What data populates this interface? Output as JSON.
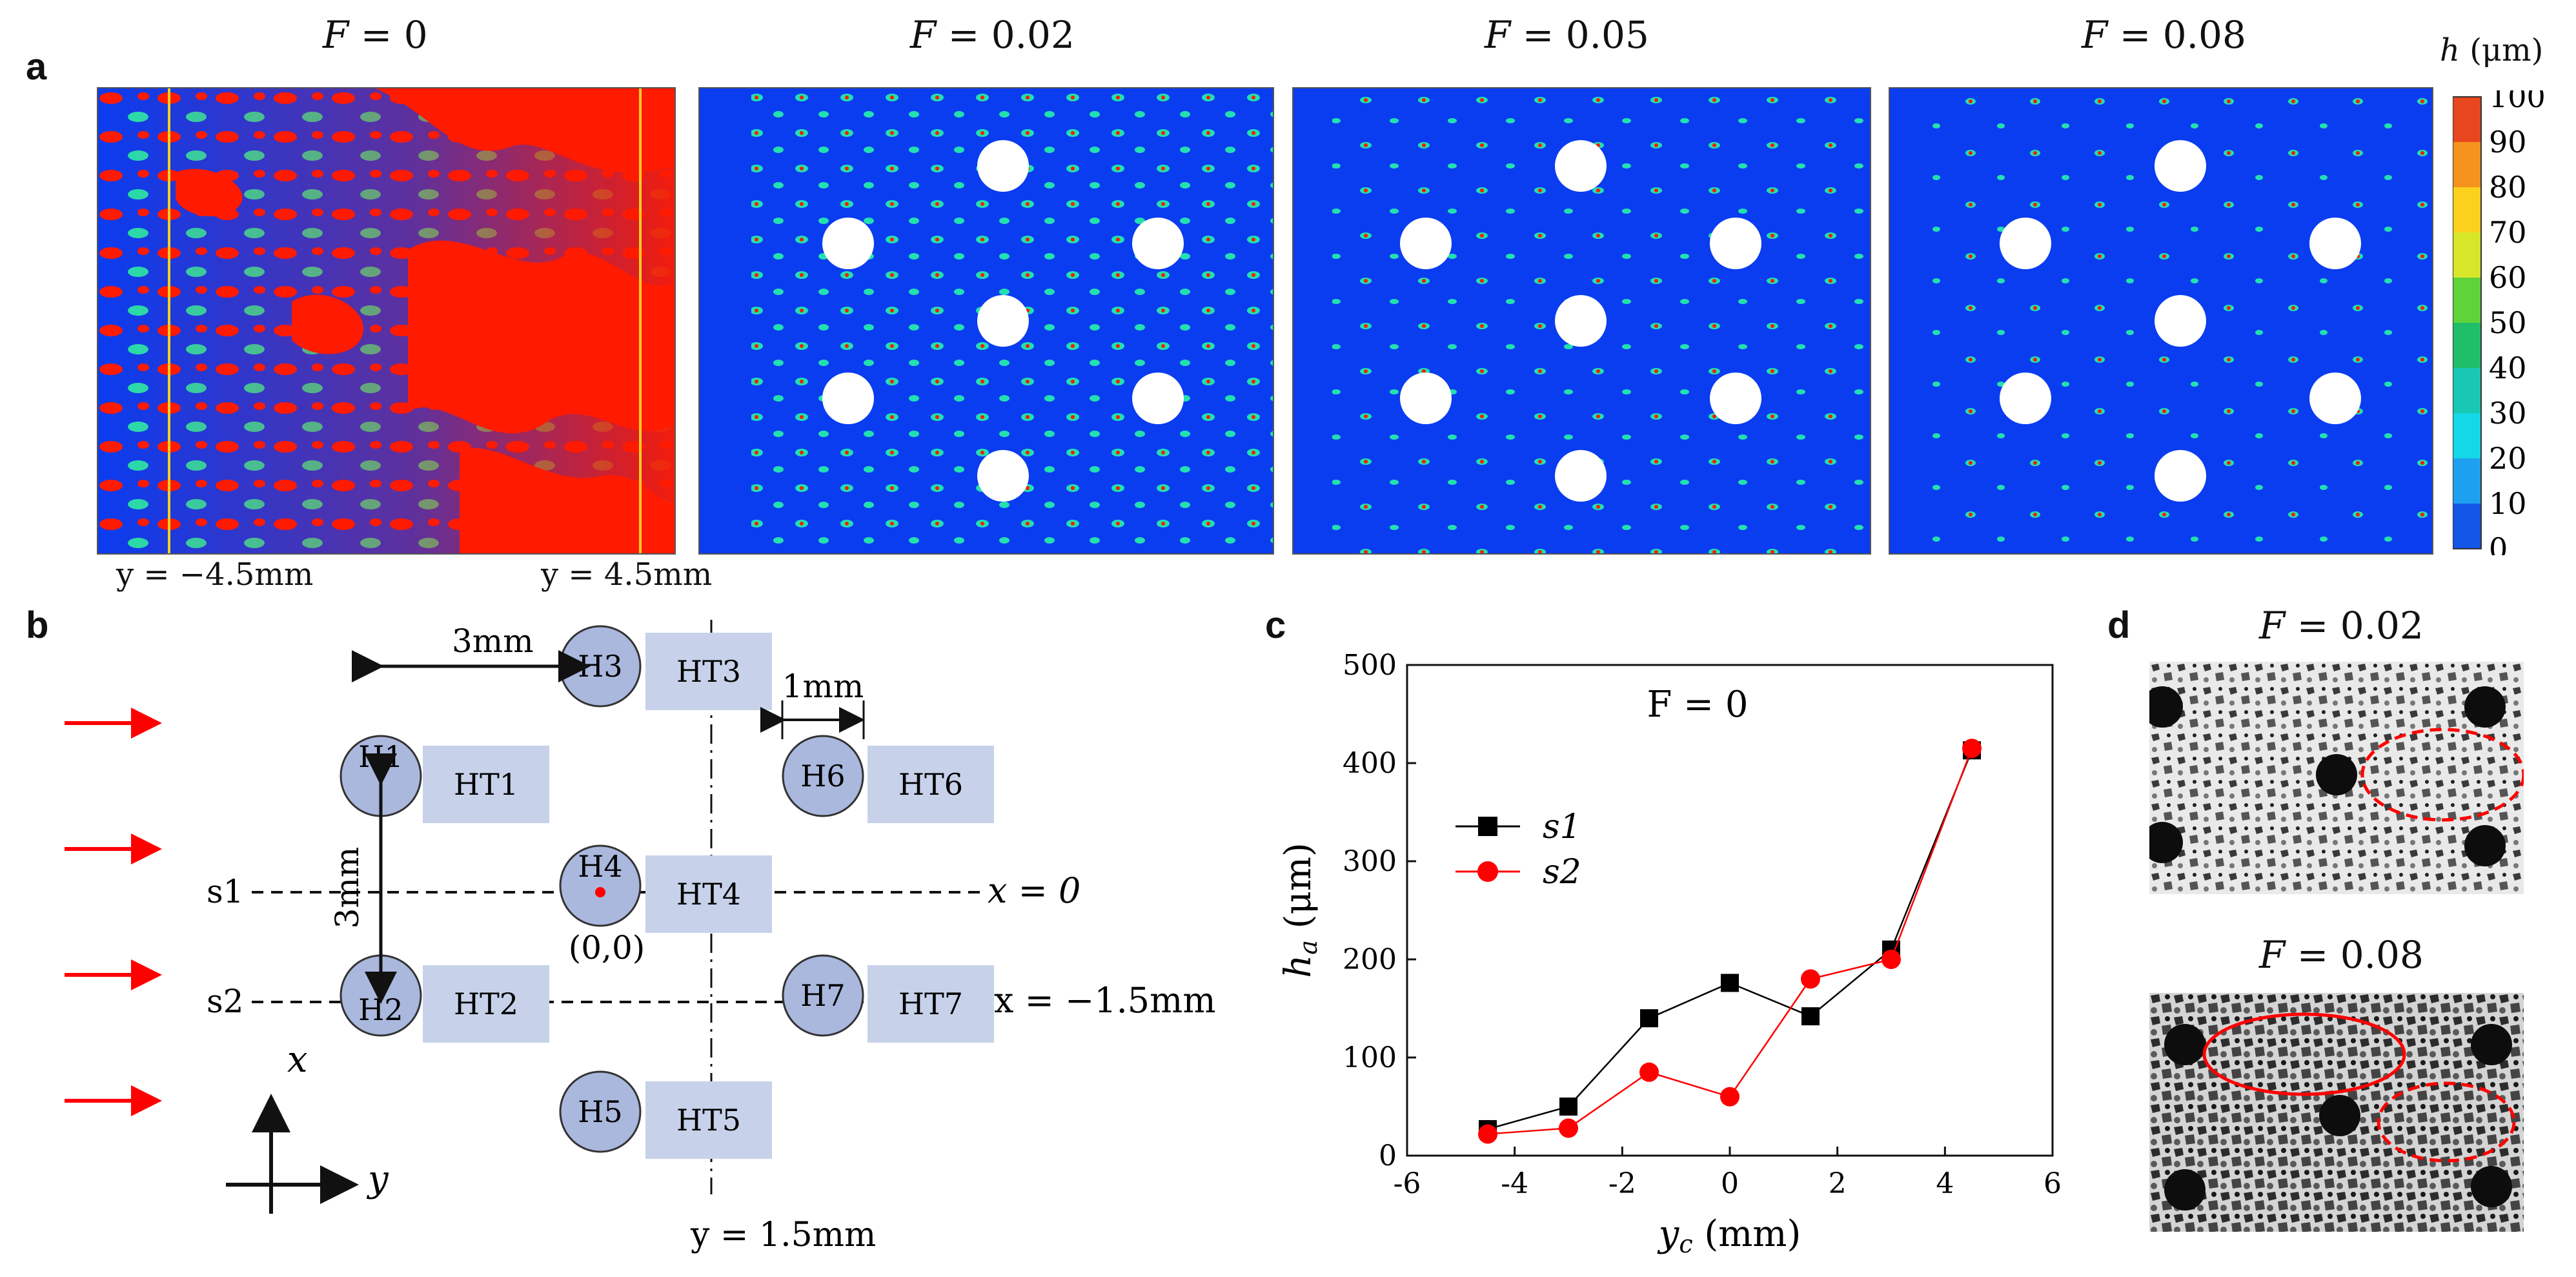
{
  "panel_labels": {
    "a": "a",
    "b": "b",
    "c": "c",
    "d": "d"
  },
  "panel_a": {
    "maps": [
      {
        "title_var": "F",
        "title_val": "= 0"
      },
      {
        "title_var": "F",
        "title_val": "= 0.02"
      },
      {
        "title_var": "F",
        "title_val": "= 0.05"
      },
      {
        "title_var": "F",
        "title_val": "= 0.08"
      }
    ],
    "y_left": "y = −4.5mm",
    "y_right": "y = 4.5mm",
    "colorbar": {
      "title_var": "h",
      "title_unit": "(μm)",
      "ticks": [
        "100",
        "90",
        "80",
        "70",
        "60",
        "50",
        "40",
        "30",
        "20",
        "10",
        "0"
      ],
      "colors": [
        "#e8461e",
        "#f6921e",
        "#fbd11c",
        "#d8e62a",
        "#5fd33a",
        "#1fbf6a",
        "#19c8b4",
        "#14d8e6",
        "#1ea0f0",
        "#1457e8"
      ]
    },
    "colors": {
      "background": "#0a3cf0",
      "high": "#ff1a00"
    }
  },
  "panel_b": {
    "holes": [
      "H1",
      "H2",
      "H3",
      "H4",
      "H5",
      "H6",
      "H7"
    ],
    "boxes": [
      "HT1",
      "HT2",
      "HT3",
      "HT4",
      "HT5",
      "HT6",
      "HT7"
    ],
    "dim_3mm_h": "3mm",
    "dim_3mm_v": "3mm",
    "dim_1mm": "1mm",
    "s1": "s1",
    "s2": "s2",
    "x0": "x = 0",
    "xm15": "x = −1.5mm",
    "origin": "(0,0)",
    "y15": "y = 1.5mm",
    "axis_x": "x",
    "axis_y": "y",
    "colors": {
      "hole": "#aab8de",
      "box": "#c7d2ea",
      "arrow": "#ff0000"
    }
  },
  "chart_data": {
    "type": "line",
    "title": "F = 0",
    "xlabel": "y_c (mm)",
    "ylabel": "h_a (μm)",
    "xlim": [
      -6,
      6
    ],
    "ylim": [
      0,
      500
    ],
    "xticks": [
      "-6",
      "-4",
      "-2",
      "0",
      "2",
      "4",
      "6"
    ],
    "yticks": [
      "0",
      "100",
      "200",
      "300",
      "400",
      "500"
    ],
    "x": [
      -4.5,
      -3,
      -1.5,
      0,
      1.5,
      3,
      4.5
    ],
    "series": [
      {
        "name": "s1",
        "marker": "square",
        "color": "#000000",
        "values": [
          27,
          50,
          140,
          176,
          142,
          210,
          413
        ]
      },
      {
        "name": "s2",
        "marker": "circle",
        "color": "#ff0000",
        "values": [
          22,
          28,
          85,
          60,
          180,
          200,
          415
        ]
      }
    ],
    "legend": "left-middle"
  },
  "panel_d": {
    "top_title_var": "F",
    "top_title_val": "= 0.02",
    "bottom_title_var": "F",
    "bottom_title_val": "= 0.08"
  }
}
